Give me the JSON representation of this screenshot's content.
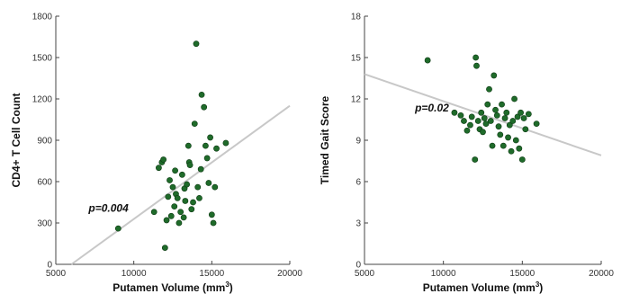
{
  "chart_data": [
    {
      "type": "scatter",
      "xlabel": "Putamen Volume (mm",
      "xlabel_sup": "3",
      "xlabel_end": ")",
      "ylabel": "CD4+ T Cell Count",
      "xlim": [
        5000,
        20000
      ],
      "ylim": [
        0,
        1800
      ],
      "xticks": [
        5000,
        10000,
        15000,
        20000
      ],
      "yticks": [
        0,
        300,
        600,
        900,
        1200,
        1500,
        1800
      ],
      "annotation": {
        "text": "p=0.004",
        "x": 7100,
        "y": 380
      },
      "trendline": {
        "x": [
          6000,
          20000
        ],
        "y": [
          0,
          1150
        ]
      },
      "point_color": "#1f6b2a",
      "line_color": "#c8c8c8",
      "points": [
        [
          9000,
          260
        ],
        [
          11300,
          380
        ],
        [
          11600,
          700
        ],
        [
          11800,
          740
        ],
        [
          11900,
          760
        ],
        [
          12000,
          120
        ],
        [
          12100,
          320
        ],
        [
          12200,
          490
        ],
        [
          12300,
          610
        ],
        [
          12400,
          350
        ],
        [
          12500,
          560
        ],
        [
          12600,
          420
        ],
        [
          12650,
          680
        ],
        [
          12700,
          510
        ],
        [
          12800,
          480
        ],
        [
          12900,
          300
        ],
        [
          13000,
          380
        ],
        [
          13100,
          650
        ],
        [
          13200,
          340
        ],
        [
          13250,
          550
        ],
        [
          13300,
          460
        ],
        [
          13400,
          580
        ],
        [
          13500,
          860
        ],
        [
          13550,
          740
        ],
        [
          13600,
          720
        ],
        [
          13700,
          400
        ],
        [
          13800,
          450
        ],
        [
          13900,
          1020
        ],
        [
          14000,
          1600
        ],
        [
          14100,
          560
        ],
        [
          14200,
          480
        ],
        [
          14300,
          690
        ],
        [
          14350,
          1230
        ],
        [
          14500,
          1140
        ],
        [
          14600,
          860
        ],
        [
          14700,
          770
        ],
        [
          14800,
          590
        ],
        [
          14900,
          920
        ],
        [
          15000,
          360
        ],
        [
          15100,
          300
        ],
        [
          15200,
          560
        ],
        [
          15300,
          840
        ],
        [
          15900,
          880
        ]
      ]
    },
    {
      "type": "scatter",
      "xlabel": "Putamen Volume (mm",
      "xlabel_sup": "3",
      "xlabel_end": ")",
      "ylabel": "Timed Gait Score",
      "xlim": [
        5000,
        20000
      ],
      "ylim": [
        0,
        18
      ],
      "xticks": [
        5000,
        10000,
        15000,
        20000
      ],
      "yticks": [
        0,
        3,
        6,
        9,
        12,
        15,
        18
      ],
      "annotation": {
        "text": "p=0.02",
        "x": 8200,
        "y": 11.1
      },
      "trendline": {
        "x": [
          5000,
          20000
        ],
        "y": [
          13.8,
          7.9
        ]
      },
      "point_color": "#1f6b2a",
      "line_color": "#c8c8c8",
      "points": [
        [
          9000,
          14.8
        ],
        [
          10700,
          11.0
        ],
        [
          11100,
          10.8
        ],
        [
          11300,
          10.4
        ],
        [
          11500,
          9.7
        ],
        [
          11700,
          10.1
        ],
        [
          11800,
          10.7
        ],
        [
          12000,
          7.6
        ],
        [
          12050,
          15.0
        ],
        [
          12100,
          14.4
        ],
        [
          12200,
          10.4
        ],
        [
          12300,
          9.8
        ],
        [
          12400,
          11.0
        ],
        [
          12500,
          9.6
        ],
        [
          12600,
          10.6
        ],
        [
          12700,
          10.2
        ],
        [
          12800,
          11.6
        ],
        [
          12900,
          12.7
        ],
        [
          13000,
          10.4
        ],
        [
          13100,
          8.6
        ],
        [
          13200,
          13.7
        ],
        [
          13300,
          11.2
        ],
        [
          13400,
          10.8
        ],
        [
          13500,
          10.0
        ],
        [
          13600,
          9.4
        ],
        [
          13700,
          11.6
        ],
        [
          13800,
          8.6
        ],
        [
          13900,
          10.6
        ],
        [
          14000,
          11.0
        ],
        [
          14100,
          9.2
        ],
        [
          14200,
          10.1
        ],
        [
          14300,
          8.2
        ],
        [
          14400,
          10.4
        ],
        [
          14500,
          12.0
        ],
        [
          14600,
          9.0
        ],
        [
          14700,
          10.7
        ],
        [
          14800,
          8.4
        ],
        [
          14900,
          11.0
        ],
        [
          15000,
          7.6
        ],
        [
          15100,
          10.6
        ],
        [
          15200,
          9.8
        ],
        [
          15400,
          10.9
        ],
        [
          15900,
          10.2
        ]
      ]
    }
  ]
}
